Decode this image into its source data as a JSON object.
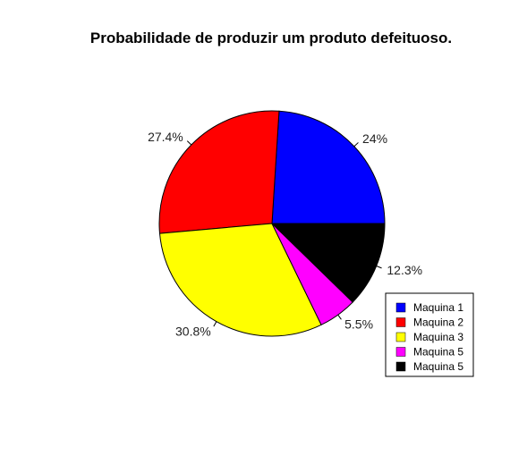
{
  "chart_data": {
    "type": "pie",
    "title": "Probabilidade de produzir um produto defeituoso.",
    "slices": [
      {
        "label": "24%",
        "value": 24.0,
        "color": "#0000FF",
        "legend": "Maquina 1"
      },
      {
        "label": "27.4%",
        "value": 27.4,
        "color": "#FF0000",
        "legend": "Maquina 2"
      },
      {
        "label": "30.8%",
        "value": 30.8,
        "color": "#FFFF00",
        "legend": "Maquina 3"
      },
      {
        "label": "5.5%",
        "value": 5.5,
        "color": "#FF00FF",
        "legend": "Maquina 5"
      },
      {
        "label": "12.3%",
        "value": 12.3,
        "color": "#000000",
        "legend": "Maquina 5"
      }
    ],
    "start_angle_deg": 0,
    "direction": "counterclockwise",
    "legend_position": "bottom-right"
  }
}
